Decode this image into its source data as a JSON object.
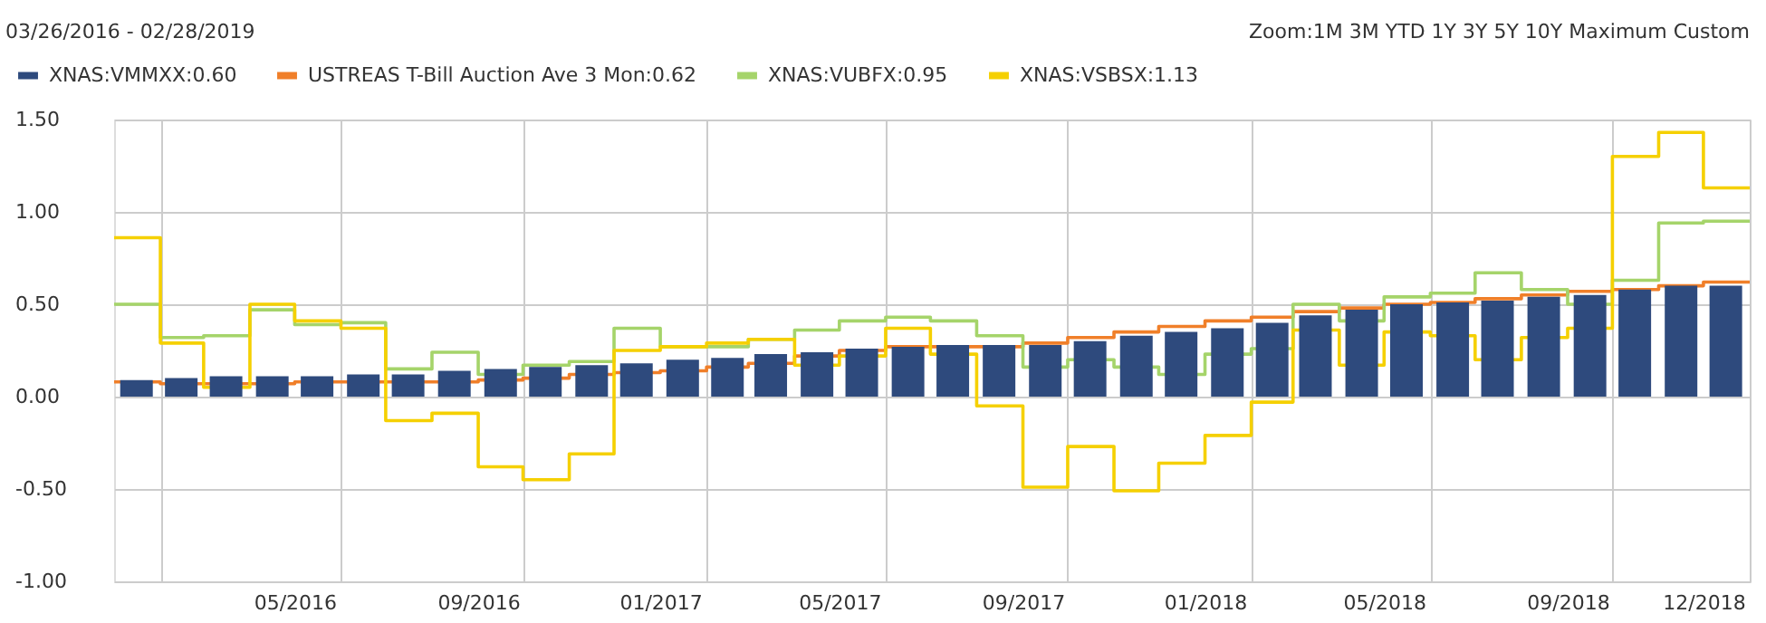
{
  "chart_data": {
    "type": "bar",
    "annotations": [
      "03/26/2016 - 02/28/2019",
      "Zoom:1M  3M  YTD  1Y  3Y  5Y  10Y  Maximum  Custom"
    ],
    "x": [
      "2016-01-16",
      "2016-02-15",
      "2016-03-16",
      "2016-04-16",
      "2016-05-16",
      "2016-06-16",
      "2016-07-16",
      "2016-08-16",
      "2016-09-16",
      "2016-10-16",
      "2016-11-16",
      "2016-12-16",
      "2017-01-16",
      "2017-02-15",
      "2017-03-16",
      "2017-04-16",
      "2017-05-16",
      "2017-06-16",
      "2017-07-16",
      "2017-08-16",
      "2017-09-16",
      "2017-10-16",
      "2017-11-16",
      "2017-12-16",
      "2018-01-16",
      "2018-02-15",
      "2018-03-16",
      "2018-04-16",
      "2018-05-16",
      "2018-06-16",
      "2018-07-16",
      "2018-08-16",
      "2018-09-16",
      "2018-10-16",
      "2018-11-16",
      "2018-12-16"
    ],
    "series": [
      {
        "name": "XNAS:VMMXX:0.60",
        "color": "#2e4a7d",
        "values": [
          0.09,
          0.1,
          0.11,
          0.11,
          0.11,
          0.12,
          0.12,
          0.14,
          0.15,
          0.16,
          0.17,
          0.18,
          0.2,
          0.21,
          0.23,
          0.24,
          0.26,
          0.27,
          0.28,
          0.28,
          0.28,
          0.3,
          0.33,
          0.35,
          0.37,
          0.4,
          0.44,
          0.47,
          0.5,
          0.51,
          0.52,
          0.54,
          0.55,
          0.58,
          0.6,
          0.6
        ]
      },
      {
        "name": "USTREAS T-Bill Auction Ave 3 Mon:0.62",
        "type": "step",
        "color": "#f07f29",
        "x": [
          "2016-01-01",
          "2016-02-01",
          "2016-03-01",
          "2016-04-01",
          "2016-05-01",
          "2016-06-01",
          "2016-07-01",
          "2016-08-01",
          "2016-09-01",
          "2016-10-01",
          "2016-11-01",
          "2016-12-01",
          "2017-01-01",
          "2017-02-01",
          "2017-03-01",
          "2017-04-01",
          "2017-05-01",
          "2017-06-01",
          "2017-07-01",
          "2017-08-01",
          "2017-09-01",
          "2017-10-01",
          "2017-11-01",
          "2017-12-01",
          "2018-01-01",
          "2018-02-01",
          "2018-03-01",
          "2018-04-01",
          "2018-05-01",
          "2018-06-01",
          "2018-07-01",
          "2018-08-01",
          "2018-09-01",
          "2018-10-01",
          "2018-11-01",
          "2018-12-01",
          "2019-01-01"
        ],
        "values": [
          0.08,
          0.07,
          0.07,
          0.07,
          0.08,
          0.08,
          0.08,
          0.08,
          0.09,
          0.1,
          0.12,
          0.13,
          0.14,
          0.16,
          0.18,
          0.22,
          0.25,
          0.27,
          0.27,
          0.27,
          0.29,
          0.32,
          0.35,
          0.38,
          0.41,
          0.43,
          0.46,
          0.48,
          0.5,
          0.51,
          0.53,
          0.55,
          0.57,
          0.58,
          0.6,
          0.62,
          0.62
        ]
      },
      {
        "name": "XNAS:VUBFX:0.95",
        "type": "step",
        "color": "#a5d46a",
        "x": [
          "2016-01-01",
          "2016-02-01",
          "2016-03-01",
          "2016-04-01",
          "2016-05-01",
          "2016-06-01",
          "2016-07-01",
          "2016-08-01",
          "2016-09-01",
          "2016-10-01",
          "2016-11-01",
          "2016-12-01",
          "2017-01-01",
          "2017-02-01",
          "2017-03-01",
          "2017-04-01",
          "2017-05-01",
          "2017-06-01",
          "2017-07-01",
          "2017-08-01",
          "2017-09-01",
          "2017-10-01",
          "2017-11-01",
          "2017-12-01",
          "2018-01-01",
          "2018-02-01",
          "2018-03-01",
          "2018-04-01",
          "2018-05-01",
          "2018-06-01",
          "2018-07-01",
          "2018-08-01",
          "2018-09-01",
          "2018-10-01",
          "2018-11-01",
          "2018-12-01",
          "2019-01-01"
        ],
        "values": [
          0.5,
          0.32,
          0.33,
          0.47,
          0.39,
          0.4,
          0.15,
          0.24,
          0.12,
          0.17,
          0.19,
          0.37,
          0.27,
          0.27,
          0.31,
          0.36,
          0.41,
          0.43,
          0.41,
          0.33,
          0.16,
          0.2,
          0.16,
          0.12,
          0.23,
          0.26,
          0.5,
          0.41,
          0.54,
          0.56,
          0.67,
          0.58,
          0.5,
          0.63,
          0.94,
          0.95,
          0.95
        ]
      },
      {
        "name": "XNAS:VSBSX:1.13",
        "type": "step",
        "color": "#f5d000",
        "x": [
          "2016-01-01",
          "2016-02-01",
          "2016-03-01",
          "2016-04-01",
          "2016-05-01",
          "2016-06-01",
          "2016-07-01",
          "2016-08-01",
          "2016-09-01",
          "2016-10-01",
          "2016-11-01",
          "2016-12-01",
          "2017-01-01",
          "2017-02-01",
          "2017-03-01",
          "2017-04-01",
          "2017-05-01",
          "2017-06-01",
          "2017-07-01",
          "2017-08-01",
          "2017-09-01",
          "2017-10-01",
          "2017-11-01",
          "2017-12-01",
          "2018-01-01",
          "2018-02-01",
          "2018-03-01",
          "2018-04-01",
          "2018-05-01",
          "2018-06-01",
          "2018-07-01",
          "2018-08-01",
          "2018-09-01",
          "2018-10-01",
          "2018-11-01",
          "2018-12-01",
          "2019-01-01"
        ],
        "values": [
          0.86,
          0.29,
          0.05,
          0.5,
          0.41,
          0.37,
          -0.13,
          -0.09,
          -0.38,
          -0.45,
          -0.31,
          0.25,
          0.27,
          0.29,
          0.31,
          0.17,
          0.22,
          0.37,
          0.23,
          -0.05,
          -0.49,
          -0.27,
          -0.51,
          -0.36,
          -0.21,
          -0.03,
          0.36,
          0.17,
          0.35,
          0.33,
          0.2,
          0.32,
          0.37,
          1.3,
          1.43,
          1.13,
          1.13
        ]
      }
    ],
    "xlim": [
      "2016-01-01",
      "2019-01-01"
    ],
    "xticks": [
      {
        "value": "2016-02-01",
        "label": null
      },
      {
        "value": "2016-05-01",
        "label": "05/2016"
      },
      {
        "value": "2016-06-01",
        "label": null
      },
      {
        "value": "2016-09-01",
        "label": "09/2016"
      },
      {
        "value": "2016-10-01",
        "label": null
      },
      {
        "value": "2017-01-01",
        "label": "01/2017"
      },
      {
        "value": "2017-02-01",
        "label": null
      },
      {
        "value": "2017-05-01",
        "label": "05/2017"
      },
      {
        "value": "2017-06-01",
        "label": null
      },
      {
        "value": "2017-09-01",
        "label": "09/2017"
      },
      {
        "value": "2017-10-01",
        "label": null
      },
      {
        "value": "2018-01-01",
        "label": "01/2018"
      },
      {
        "value": "2018-02-01",
        "label": null
      },
      {
        "value": "2018-05-01",
        "label": "05/2018"
      },
      {
        "value": "2018-06-01",
        "label": null
      },
      {
        "value": "2018-09-01",
        "label": "09/2018"
      },
      {
        "value": "2018-10-01",
        "label": null
      },
      {
        "value": "2018-12-01",
        "label": "12/2018"
      },
      {
        "value": "2019-01-01",
        "label": null
      }
    ],
    "ylim": [
      -1.0,
      1.5
    ],
    "yticks": [
      {
        "value": -1.0,
        "label": "-1.00"
      },
      {
        "value": -0.5,
        "label": "-0.50"
      },
      {
        "value": 0.0,
        "label": "0.00"
      },
      {
        "value": 0.5,
        "label": "0.50"
      },
      {
        "value": 1.0,
        "label": "1.00"
      },
      {
        "value": 1.5,
        "label": "1.50"
      }
    ],
    "grid": true,
    "legend": "top left",
    "marker": "none",
    "line_style": "solid"
  }
}
